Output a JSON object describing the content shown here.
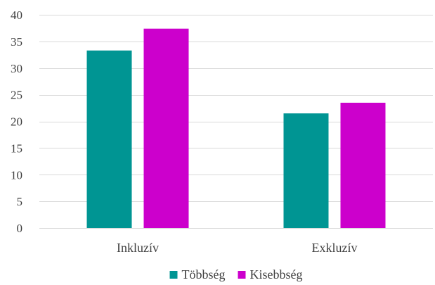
{
  "chart_data": {
    "type": "bar",
    "categories": [
      "Inkluzív",
      "Exkluzív"
    ],
    "series": [
      {
        "name": "Többség",
        "values": [
          33.3,
          21.5
        ],
        "color": "#009593"
      },
      {
        "name": "Kisebbség",
        "values": [
          37.4,
          23.5
        ],
        "color": "#cc00cc"
      }
    ],
    "ylim": [
      0,
      40
    ],
    "yticks": [
      0,
      5,
      10,
      15,
      20,
      25,
      30,
      35,
      40
    ],
    "grid": true,
    "legend_position": "bottom"
  }
}
